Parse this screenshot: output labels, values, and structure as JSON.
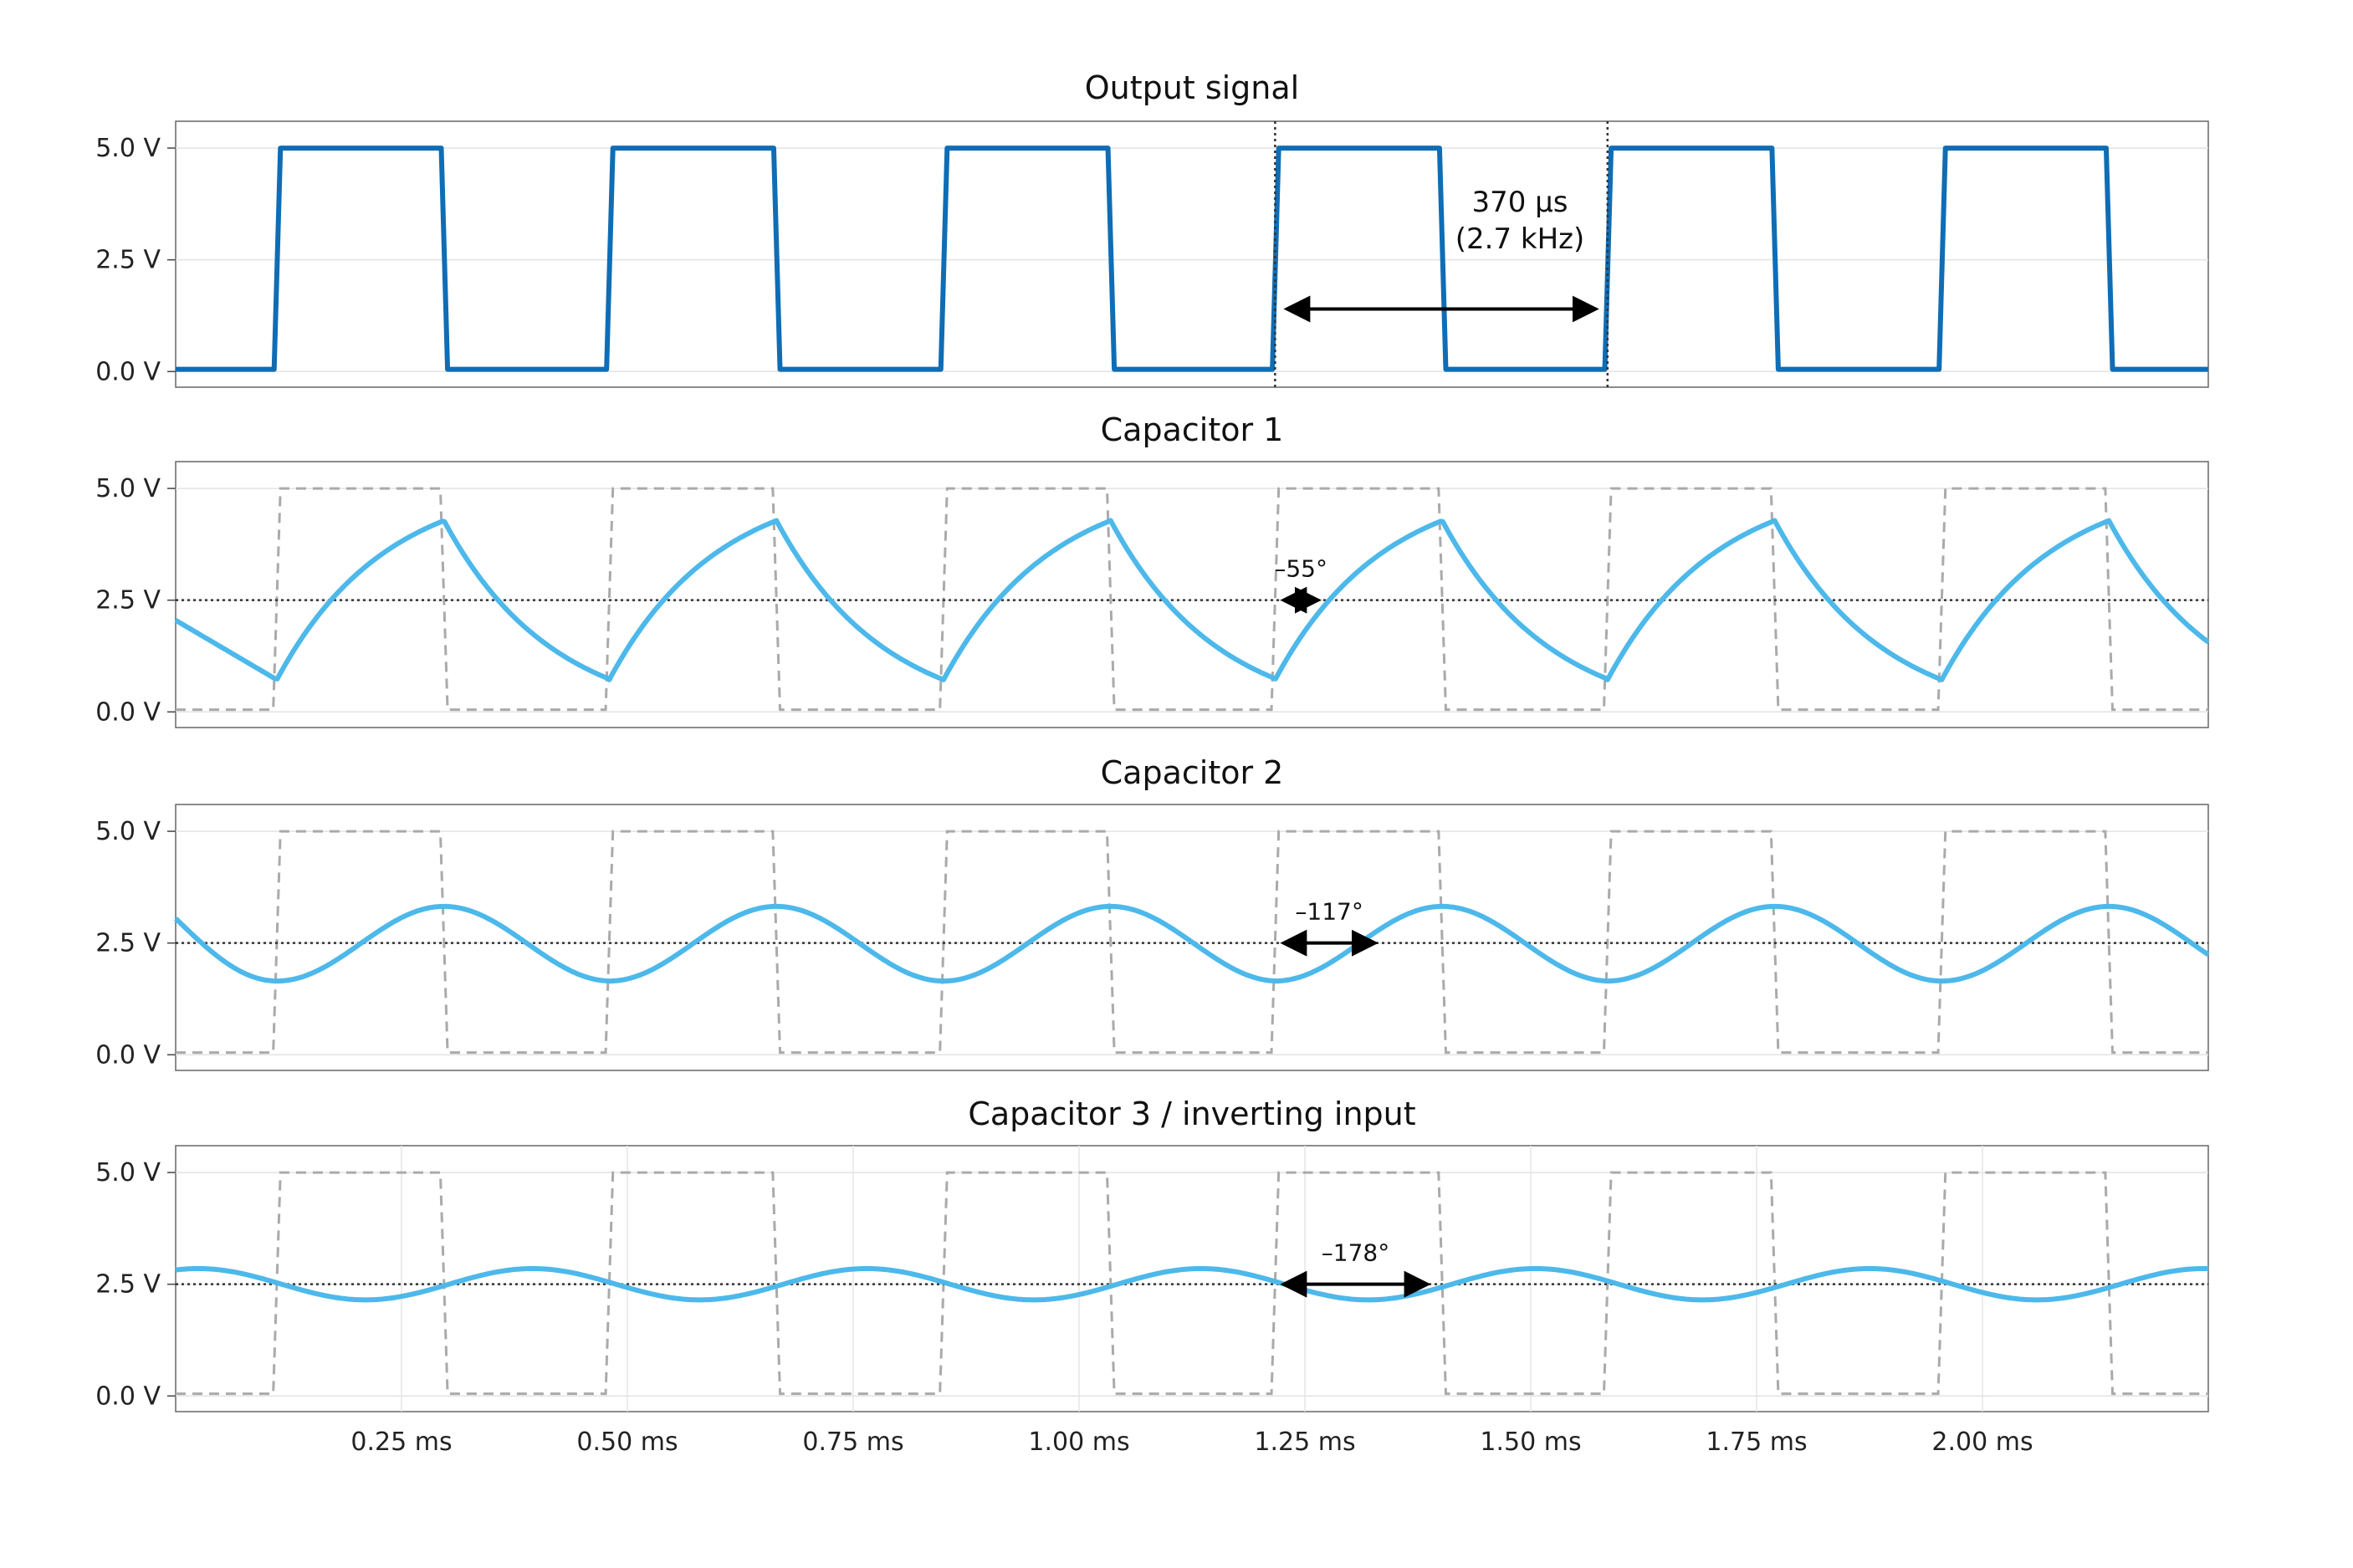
{
  "chart_data": [
    {
      "type": "line",
      "title": "Output signal",
      "x_unit": "ms",
      "ylim": [
        -0.35,
        5.6
      ],
      "xlim": [
        0,
        2.25
      ],
      "yticks": [
        0,
        2.5,
        5
      ],
      "ytick_labels": [
        "0.0 V",
        "2.5 V",
        "5.0 V"
      ],
      "series": [
        {
          "role": "output",
          "color": "#0f6db5",
          "shape": "square",
          "low": 0.05,
          "high": 5.0,
          "rise_times": [
            0.112,
            0.48,
            0.85,
            1.217,
            1.585
          ],
          "fall_times": [
            0.297,
            0.665,
            1.035,
            1.402,
            1.77
          ],
          "extra_rise": 1.955,
          "extra_fall": 2.14
        }
      ],
      "markers": [
        1.217,
        1.585
      ],
      "annotation": {
        "text_line1": "370 µs",
        "text_line2": "(2.7 kHz)",
        "x_from": 1.217,
        "x_to": 1.585,
        "y": 1.4
      }
    },
    {
      "type": "line",
      "title": "Capacitor 1",
      "ylim": [
        -0.35,
        5.6
      ],
      "xlim": [
        0,
        2.25
      ],
      "yticks": [
        0,
        2.5,
        5
      ],
      "ytick_labels": [
        "0.0 V",
        "2.5 V",
        "5.0 V"
      ],
      "series": [
        {
          "role": "reference-square",
          "color": "#aaaaaa",
          "dashed": true
        },
        {
          "role": "rc-charge",
          "color": "#4db8ea",
          "v_min": 0.72,
          "v_max": 4.28,
          "tau": 0.12,
          "start_value": 2.05
        }
      ],
      "reference_line": 2.5,
      "annotation": {
        "text": "–55°",
        "x_from": 1.217,
        "x_to": 1.274,
        "y": 2.5
      }
    },
    {
      "type": "line",
      "title": "Capacitor 2",
      "ylim": [
        -0.35,
        5.6
      ],
      "xlim": [
        0,
        2.25
      ],
      "yticks": [
        0,
        2.5,
        5
      ],
      "ytick_labels": [
        "0.0 V",
        "2.5 V",
        "5.0 V"
      ],
      "series": [
        {
          "role": "reference-square",
          "color": "#aaaaaa",
          "dashed": true
        },
        {
          "role": "triangle-ish",
          "color": "#4db8ea",
          "v_min": 1.65,
          "v_max": 3.32,
          "start_value": 3.05
        }
      ],
      "reference_line": 2.5,
      "annotation": {
        "text": "–117°",
        "x_from": 1.217,
        "x_to": 1.337,
        "y": 2.5
      }
    },
    {
      "type": "line",
      "title": "Capacitor 3 / inverting input",
      "ylim": [
        -0.35,
        5.6
      ],
      "xlim": [
        0,
        2.25
      ],
      "yticks": [
        0,
        2.5,
        5
      ],
      "ytick_labels": [
        "0.0 V",
        "2.5 V",
        "5.0 V"
      ],
      "xticks": [
        0.25,
        0.5,
        0.75,
        1.0,
        1.25,
        1.5,
        1.75,
        2.0
      ],
      "xtick_labels": [
        "0.25 ms",
        "0.50 ms",
        "0.75 ms",
        "1.00 ms",
        "1.25 ms",
        "1.50 ms",
        "1.75 ms",
        "2.00 ms"
      ],
      "series": [
        {
          "role": "reference-square",
          "color": "#aaaaaa",
          "dashed": true
        },
        {
          "role": "sine",
          "color": "#4db8ea",
          "amplitude": 0.35,
          "center": 2.5,
          "period": 0.37,
          "min_at": 0.21
        }
      ],
      "reference_line": 2.5,
      "annotation": {
        "text": "–178°",
        "x_from": 1.217,
        "x_to": 1.395,
        "y": 2.5
      }
    }
  ]
}
